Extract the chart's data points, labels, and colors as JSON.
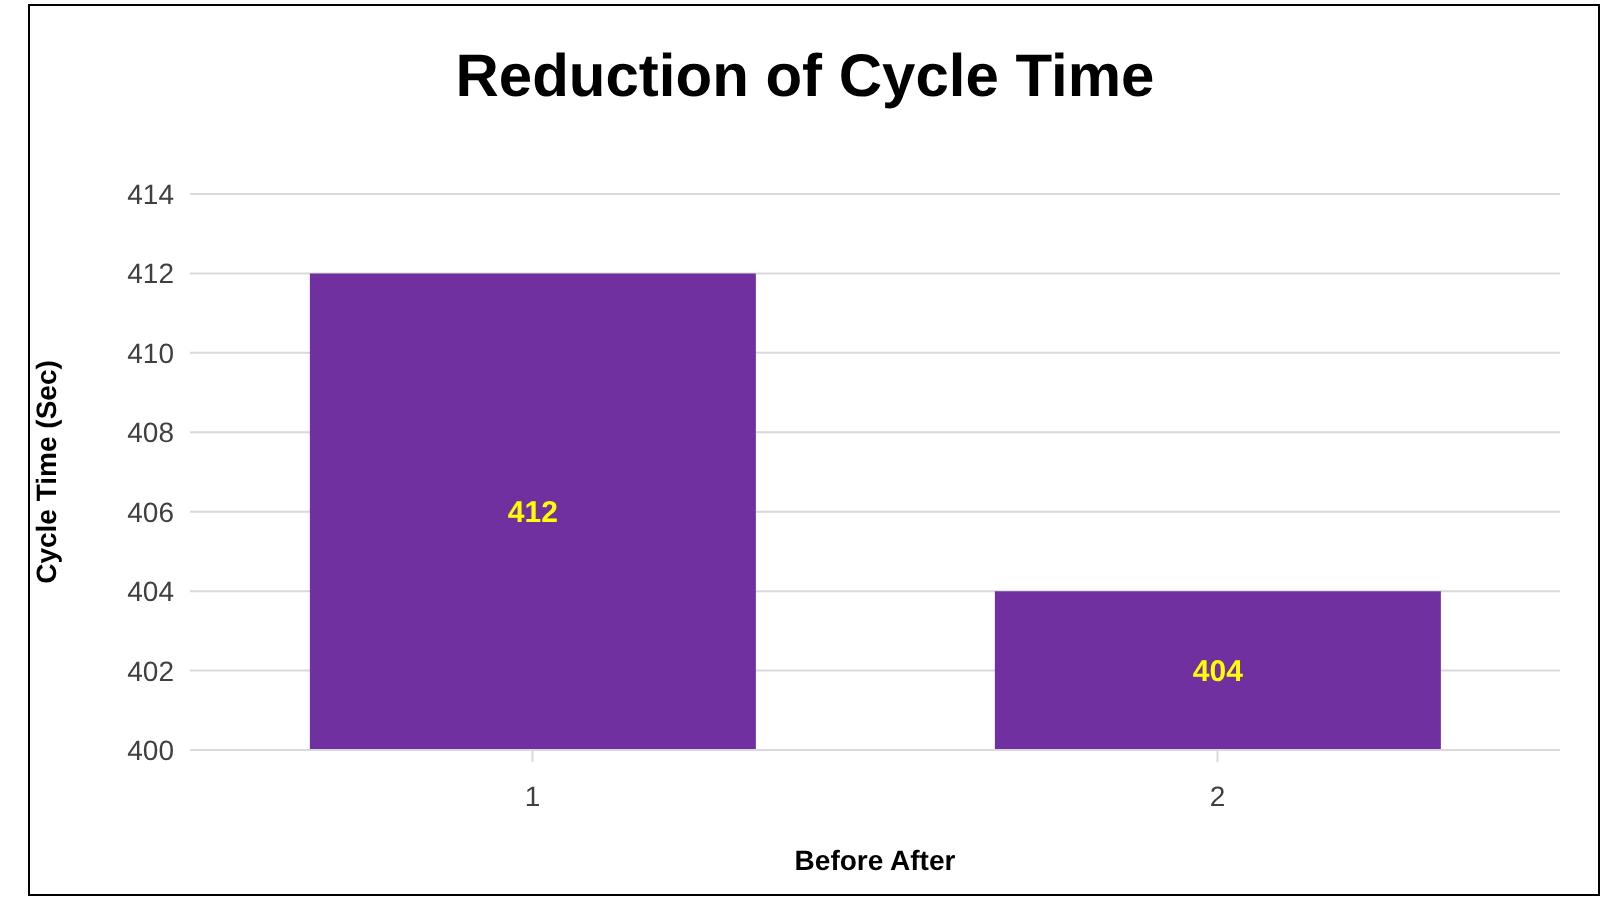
{
  "chart_data": {
    "type": "bar",
    "title": "Reduction of Cycle Time",
    "xlabel": "Before After",
    "ylabel": "Cycle Time (Sec)",
    "categories": [
      "1",
      "2"
    ],
    "values": [
      412,
      404
    ],
    "color": "#7030a0",
    "ylim": [
      400,
      414
    ],
    "yticks": [
      400,
      402,
      404,
      406,
      408,
      410,
      412,
      414
    ],
    "grid": "y",
    "data_labels": true
  }
}
